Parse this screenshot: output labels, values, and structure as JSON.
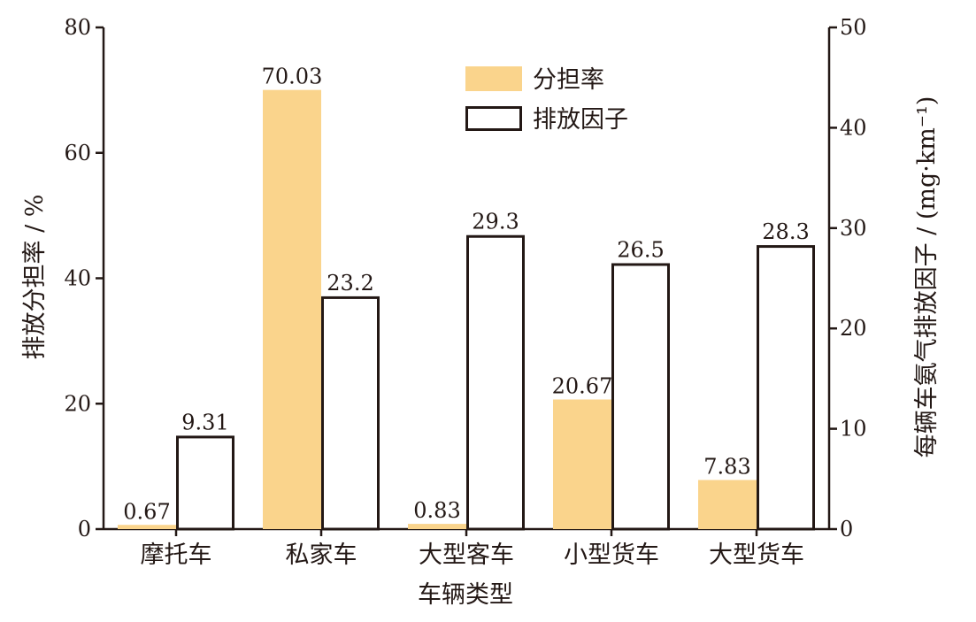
{
  "chart_data": {
    "type": "bar",
    "categories": [
      "摩托车",
      "私家车",
      "大型客车",
      "小型货车",
      "大型货车"
    ],
    "xlabel": "车辆类型",
    "ylabel_left": "排放分担率 / %",
    "ylabel_right": "每辆车氨气排放因子 / (mg·km⁻¹)",
    "ylim_left": [
      0,
      80
    ],
    "yticks_left": [
      0,
      20,
      40,
      60,
      80
    ],
    "ylim_right": [
      0,
      50
    ],
    "yticks_right": [
      0,
      10,
      20,
      30,
      40,
      50
    ],
    "grid": false,
    "legend_position": "top-center",
    "series": [
      {
        "name": "分担率",
        "axis": "left",
        "style": "filled",
        "color": "#FAD48C",
        "values": [
          0.67,
          70.03,
          0.83,
          20.67,
          7.83
        ],
        "labels": [
          "0.67",
          "70.03",
          "0.83",
          "20.67",
          "7.83"
        ]
      },
      {
        "name": "排放因子",
        "axis": "right",
        "style": "outline",
        "color": "#231815",
        "values": [
          9.31,
          23.2,
          29.3,
          26.5,
          28.3
        ],
        "labels": [
          "9.31",
          "23.2",
          "29.3",
          "26.5",
          "28.3"
        ]
      }
    ]
  }
}
